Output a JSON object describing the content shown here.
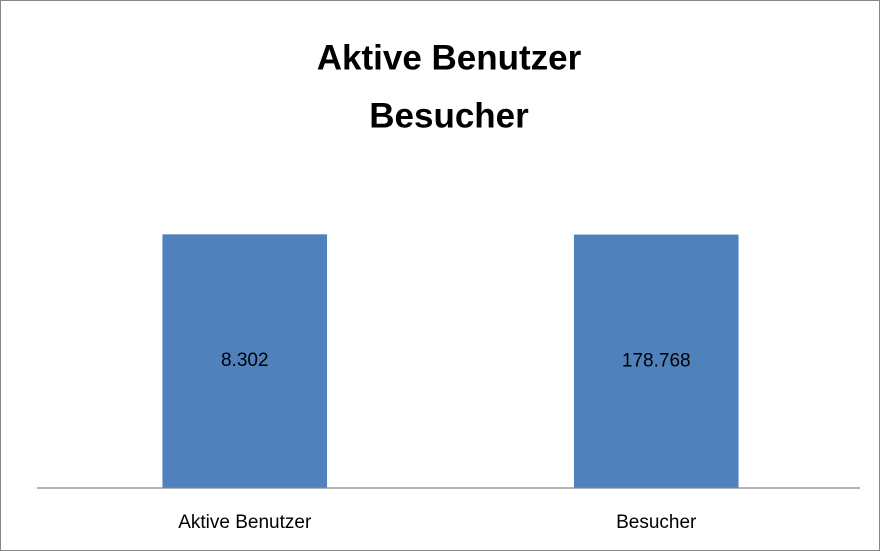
{
  "chart_data": {
    "type": "bar",
    "title": [
      "Aktive Benutzer",
      "Besucher"
    ],
    "categories": [
      "Aktive Benutzer",
      "Besucher"
    ],
    "series": [
      {
        "name": "Aktive Benutzer",
        "color": "#4f81bd",
        "values": [
          8302,
          null
        ],
        "value_labels": [
          "8.302",
          null
        ]
      },
      {
        "name": "Besucher",
        "color": "#4f81bd",
        "axis": "y2",
        "values": [
          null,
          178768
        ],
        "value_labels": [
          null,
          "178.768"
        ]
      }
    ],
    "ylim": [
      0,
      9000
    ],
    "y2lim": [
      0,
      194000
    ],
    "grid": false,
    "legend": false
  }
}
